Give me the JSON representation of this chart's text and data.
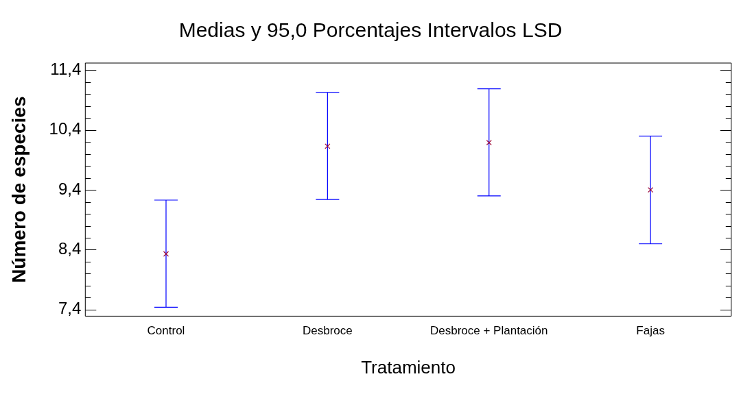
{
  "chart_data": {
    "type": "scatter",
    "title": "Medias y 95,0 Porcentajes Intervalos LSD",
    "xlabel": "Tratamiento",
    "ylabel": "Número de especies",
    "categories": [
      "Control",
      "Desbroce",
      "Desbroce + Plantación",
      "Fajas"
    ],
    "series": [
      {
        "color": "#990033",
        "values": [
          8.33,
          10.13,
          10.19,
          9.4
        ],
        "errors": [
          [
            7.44,
            9.23
          ],
          [
            9.24,
            11.03
          ],
          [
            9.3,
            11.09
          ],
          [
            8.5,
            10.3
          ]
        ]
      }
    ],
    "marker": "cross",
    "ylim": [
      7.29,
      11.52
    ],
    "yticks": [
      {
        "value": 7.4,
        "label": "7,4"
      },
      {
        "value": 7.6,
        "label": null
      },
      {
        "value": 7.8,
        "label": null
      },
      {
        "value": 8.0,
        "label": null
      },
      {
        "value": 8.2,
        "label": null
      },
      {
        "value": 8.4,
        "label": "8,4"
      },
      {
        "value": 8.6,
        "label": null
      },
      {
        "value": 8.8,
        "label": null
      },
      {
        "value": 9.0,
        "label": null
      },
      {
        "value": 9.2,
        "label": null
      },
      {
        "value": 9.4,
        "label": "9,4"
      },
      {
        "value": 9.6,
        "label": null
      },
      {
        "value": 9.8,
        "label": null
      },
      {
        "value": 10.0,
        "label": null
      },
      {
        "value": 10.2,
        "label": null
      },
      {
        "value": 10.4,
        "label": "10,4"
      },
      {
        "value": 10.6,
        "label": null
      },
      {
        "value": 10.8,
        "label": null
      },
      {
        "value": 11.0,
        "label": null
      },
      {
        "value": 11.2,
        "label": null
      },
      {
        "value": 11.4,
        "label": "11,4"
      }
    ],
    "grid": false,
    "legend": false
  }
}
